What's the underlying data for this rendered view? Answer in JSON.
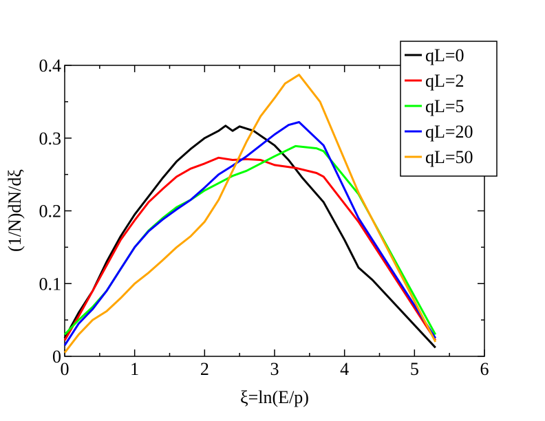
{
  "chart_data": {
    "type": "line",
    "title": "",
    "xlabel": "ξ=ln(E/p)",
    "ylabel": "(1/N)dN/dξ",
    "xlim": [
      0,
      6
    ],
    "ylim": [
      0,
      0.4
    ],
    "xticks": [
      0,
      1,
      2,
      3,
      4,
      5,
      6
    ],
    "xtick_labels": [
      "0",
      "1",
      "2",
      "3",
      "4",
      "5",
      "6"
    ],
    "yticks": [
      0,
      0.1,
      0.2,
      0.3,
      0.4
    ],
    "ytick_labels": [
      "0",
      "0.1",
      "0.2",
      "0.3",
      "0.4"
    ],
    "legend_position": "top-right",
    "series": [
      {
        "name": "qL=0",
        "color": "#000000",
        "x": [
          0.0,
          0.2,
          0.4,
          0.6,
          0.8,
          1.0,
          1.2,
          1.4,
          1.6,
          1.8,
          2.0,
          2.2,
          2.3,
          2.4,
          2.5,
          2.7,
          3.0,
          3.2,
          3.4,
          3.7,
          4.0,
          4.2,
          4.4,
          5.3
        ],
        "y": [
          0.025,
          0.06,
          0.09,
          0.13,
          0.165,
          0.195,
          0.22,
          0.245,
          0.268,
          0.285,
          0.3,
          0.31,
          0.317,
          0.31,
          0.316,
          0.31,
          0.29,
          0.27,
          0.245,
          0.212,
          0.16,
          0.122,
          0.105,
          0.012
        ]
      },
      {
        "name": "qL=2",
        "color": "#ff0000",
        "x": [
          0.0,
          0.2,
          0.4,
          0.6,
          0.8,
          1.0,
          1.2,
          1.4,
          1.6,
          1.8,
          2.0,
          2.2,
          2.4,
          2.6,
          2.8,
          3.0,
          3.3,
          3.6,
          3.7,
          4.2,
          5.3
        ],
        "y": [
          0.022,
          0.055,
          0.09,
          0.125,
          0.16,
          0.187,
          0.212,
          0.23,
          0.247,
          0.258,
          0.265,
          0.273,
          0.27,
          0.271,
          0.27,
          0.263,
          0.259,
          0.252,
          0.247,
          0.185,
          0.022
        ]
      },
      {
        "name": "qL=5",
        "color": "#00ff00",
        "x": [
          0.0,
          0.2,
          0.4,
          0.6,
          0.8,
          1.0,
          1.2,
          1.4,
          1.6,
          1.8,
          2.0,
          2.2,
          2.4,
          2.6,
          2.8,
          3.0,
          3.3,
          3.6,
          3.7,
          4.2,
          5.3
        ],
        "y": [
          0.03,
          0.05,
          0.068,
          0.09,
          0.12,
          0.15,
          0.173,
          0.19,
          0.205,
          0.215,
          0.228,
          0.238,
          0.248,
          0.255,
          0.265,
          0.275,
          0.289,
          0.286,
          0.282,
          0.223,
          0.03
        ]
      },
      {
        "name": "qL=20",
        "color": "#0000ff",
        "x": [
          0.0,
          0.2,
          0.4,
          0.6,
          0.8,
          1.0,
          1.2,
          1.4,
          1.6,
          1.8,
          2.0,
          2.2,
          2.4,
          2.6,
          2.8,
          3.0,
          3.2,
          3.35,
          3.7,
          4.2,
          5.3
        ],
        "y": [
          0.015,
          0.045,
          0.065,
          0.09,
          0.12,
          0.15,
          0.172,
          0.188,
          0.202,
          0.215,
          0.232,
          0.25,
          0.262,
          0.275,
          0.29,
          0.305,
          0.318,
          0.322,
          0.29,
          0.19,
          0.025
        ]
      },
      {
        "name": "qL=50",
        "color": "#ffa500",
        "x": [
          0.0,
          0.2,
          0.4,
          0.6,
          0.8,
          1.0,
          1.2,
          1.4,
          1.6,
          1.8,
          2.0,
          2.2,
          2.4,
          2.6,
          2.8,
          3.0,
          3.15,
          3.35,
          3.65,
          4.2,
          5.3
        ],
        "y": [
          0.005,
          0.03,
          0.05,
          0.062,
          0.08,
          0.1,
          0.115,
          0.132,
          0.15,
          0.165,
          0.185,
          0.215,
          0.255,
          0.295,
          0.33,
          0.355,
          0.375,
          0.387,
          0.35,
          0.225,
          0.02
        ]
      }
    ]
  }
}
